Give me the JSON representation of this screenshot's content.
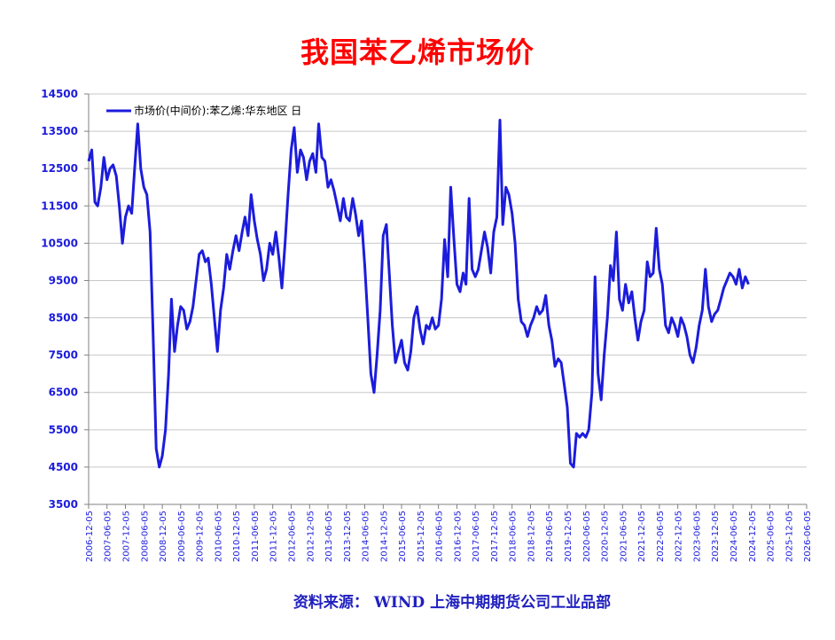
{
  "title": "我国苯乙烯市场价",
  "source": "资料来源：  WIND    上海中期期货公司工业品部",
  "colors": {
    "title": "#ff0000",
    "series": "#1c1cdc",
    "axis_text": "#1c1cdc",
    "grid": "#c8c8c8",
    "source": "#2020c0"
  },
  "chart_data": {
    "type": "line",
    "ylim": [
      3500,
      14500
    ],
    "yticks": [
      3500,
      4500,
      5500,
      6500,
      7500,
      8500,
      9500,
      10500,
      11500,
      12500,
      13500,
      14500
    ],
    "xlim": [
      "2006-12-05",
      "2026-06-05"
    ],
    "xticks": [
      "2006-12-05",
      "2007-06-05",
      "2007-12-05",
      "2008-06-05",
      "2008-12-05",
      "2009-06-05",
      "2009-12-05",
      "2010-06-05",
      "2010-12-05",
      "2011-06-05",
      "2011-12-05",
      "2012-06-05",
      "2012-12-05",
      "2013-06-05",
      "2013-12-05",
      "2014-06-05",
      "2014-12-05",
      "2015-06-05",
      "2015-12-05",
      "2016-06-05",
      "2016-12-05",
      "2017-06-05",
      "2017-12-05",
      "2018-06-05",
      "2018-12-05",
      "2019-06-05",
      "2019-12-05",
      "2020-06-05",
      "2020-12-05",
      "2021-06-05",
      "2021-12-05",
      "2022-06-05",
      "2022-12-05",
      "2023-06-05",
      "2023-12-05",
      "2024-06-05",
      "2024-12-05",
      "2025-06-05",
      "2025-12-05",
      "2026-06-05"
    ],
    "grid": true,
    "legend_position": "top-left",
    "series": [
      {
        "name": "市场价(中间价):苯乙烯:华东地区  日",
        "points": [
          [
            "2006-12-05",
            12700
          ],
          [
            "2007-01-05",
            13000
          ],
          [
            "2007-02-05",
            11600
          ],
          [
            "2007-03-05",
            11500
          ],
          [
            "2007-04-05",
            12000
          ],
          [
            "2007-05-05",
            12800
          ],
          [
            "2007-06-05",
            12200
          ],
          [
            "2007-07-05",
            12500
          ],
          [
            "2007-08-05",
            12600
          ],
          [
            "2007-09-05",
            12300
          ],
          [
            "2007-10-05",
            11500
          ],
          [
            "2007-11-05",
            10500
          ],
          [
            "2007-12-05",
            11200
          ],
          [
            "2008-01-05",
            11500
          ],
          [
            "2008-02-05",
            11300
          ],
          [
            "2008-03-05",
            12500
          ],
          [
            "2008-04-05",
            13700
          ],
          [
            "2008-05-05",
            12500
          ],
          [
            "2008-06-05",
            12000
          ],
          [
            "2008-07-05",
            11800
          ],
          [
            "2008-08-05",
            10800
          ],
          [
            "2008-09-05",
            8000
          ],
          [
            "2008-10-05",
            5000
          ],
          [
            "2008-11-05",
            4500
          ],
          [
            "2008-12-05",
            4800
          ],
          [
            "2009-01-05",
            5500
          ],
          [
            "2009-02-05",
            7000
          ],
          [
            "2009-03-05",
            9000
          ],
          [
            "2009-04-05",
            7600
          ],
          [
            "2009-05-05",
            8300
          ],
          [
            "2009-06-05",
            8800
          ],
          [
            "2009-07-05",
            8700
          ],
          [
            "2009-08-05",
            8200
          ],
          [
            "2009-09-05",
            8400
          ],
          [
            "2009-10-05",
            8800
          ],
          [
            "2009-11-05",
            9500
          ],
          [
            "2009-12-05",
            10200
          ],
          [
            "2010-01-05",
            10300
          ],
          [
            "2010-02-05",
            10000
          ],
          [
            "2010-03-05",
            10100
          ],
          [
            "2010-04-05",
            9400
          ],
          [
            "2010-05-05",
            8500
          ],
          [
            "2010-06-05",
            7600
          ],
          [
            "2010-07-05",
            8700
          ],
          [
            "2010-08-05",
            9300
          ],
          [
            "2010-09-05",
            10200
          ],
          [
            "2010-10-05",
            9800
          ],
          [
            "2010-11-05",
            10300
          ],
          [
            "2010-12-05",
            10700
          ],
          [
            "2011-01-05",
            10300
          ],
          [
            "2011-02-05",
            10800
          ],
          [
            "2011-03-05",
            11200
          ],
          [
            "2011-04-05",
            10700
          ],
          [
            "2011-05-05",
            11800
          ],
          [
            "2011-06-05",
            11100
          ],
          [
            "2011-07-05",
            10600
          ],
          [
            "2011-08-05",
            10200
          ],
          [
            "2011-09-05",
            9500
          ],
          [
            "2011-10-05",
            9800
          ],
          [
            "2011-11-05",
            10500
          ],
          [
            "2011-12-05",
            10200
          ],
          [
            "2012-01-05",
            10800
          ],
          [
            "2012-02-05",
            10100
          ],
          [
            "2012-03-05",
            9300
          ],
          [
            "2012-04-05",
            10500
          ],
          [
            "2012-05-05",
            11800
          ],
          [
            "2012-06-05",
            13000
          ],
          [
            "2012-07-05",
            13600
          ],
          [
            "2012-08-05",
            12400
          ],
          [
            "2012-09-05",
            13000
          ],
          [
            "2012-10-05",
            12800
          ],
          [
            "2012-11-05",
            12200
          ],
          [
            "2012-12-05",
            12700
          ],
          [
            "2013-01-05",
            12900
          ],
          [
            "2013-02-05",
            12400
          ],
          [
            "2013-03-05",
            13700
          ],
          [
            "2013-04-05",
            12800
          ],
          [
            "2013-05-05",
            12700
          ],
          [
            "2013-06-05",
            12000
          ],
          [
            "2013-07-05",
            12200
          ],
          [
            "2013-08-05",
            11900
          ],
          [
            "2013-09-05",
            11500
          ],
          [
            "2013-10-05",
            11100
          ],
          [
            "2013-11-05",
            11700
          ],
          [
            "2013-12-05",
            11200
          ],
          [
            "2014-01-05",
            11100
          ],
          [
            "2014-02-05",
            11700
          ],
          [
            "2014-03-05",
            11300
          ],
          [
            "2014-04-05",
            10700
          ],
          [
            "2014-05-05",
            11100
          ],
          [
            "2014-06-05",
            9900
          ],
          [
            "2014-07-05",
            8500
          ],
          [
            "2014-08-05",
            7000
          ],
          [
            "2014-09-05",
            6500
          ],
          [
            "2014-10-05",
            7500
          ],
          [
            "2014-11-05",
            8700
          ],
          [
            "2014-12-05",
            10700
          ],
          [
            "2015-01-05",
            11000
          ],
          [
            "2015-02-05",
            9600
          ],
          [
            "2015-03-05",
            8300
          ],
          [
            "2015-04-05",
            7300
          ],
          [
            "2015-05-05",
            7600
          ],
          [
            "2015-06-05",
            7900
          ],
          [
            "2015-07-05",
            7300
          ],
          [
            "2015-08-05",
            7100
          ],
          [
            "2015-09-05",
            7600
          ],
          [
            "2015-10-05",
            8500
          ],
          [
            "2015-11-05",
            8800
          ],
          [
            "2015-12-05",
            8200
          ],
          [
            "2016-01-05",
            7800
          ],
          [
            "2016-02-05",
            8300
          ],
          [
            "2016-03-05",
            8200
          ],
          [
            "2016-04-05",
            8500
          ],
          [
            "2016-05-05",
            8200
          ],
          [
            "2016-06-05",
            8300
          ],
          [
            "2016-07-05",
            9000
          ],
          [
            "2016-08-05",
            10600
          ],
          [
            "2016-09-05",
            9600
          ],
          [
            "2016-10-05",
            12000
          ],
          [
            "2016-11-05",
            10600
          ],
          [
            "2016-12-05",
            9400
          ],
          [
            "2017-01-05",
            9200
          ],
          [
            "2017-02-05",
            9700
          ],
          [
            "2017-03-05",
            9400
          ],
          [
            "2017-04-05",
            11700
          ],
          [
            "2017-05-05",
            9800
          ],
          [
            "2017-06-05",
            9600
          ],
          [
            "2017-07-05",
            9800
          ],
          [
            "2017-08-05",
            10300
          ],
          [
            "2017-09-05",
            10800
          ],
          [
            "2017-10-05",
            10400
          ],
          [
            "2017-11-05",
            9700
          ],
          [
            "2017-12-05",
            10800
          ],
          [
            "2018-01-05",
            11200
          ],
          [
            "2018-02-05",
            13800
          ],
          [
            "2018-03-05",
            11000
          ],
          [
            "2018-04-05",
            12000
          ],
          [
            "2018-05-05",
            11800
          ],
          [
            "2018-06-05",
            11300
          ],
          [
            "2018-07-05",
            10500
          ],
          [
            "2018-08-05",
            9000
          ],
          [
            "2018-09-05",
            8400
          ],
          [
            "2018-10-05",
            8300
          ],
          [
            "2018-11-05",
            8000
          ],
          [
            "2018-12-05",
            8300
          ],
          [
            "2019-01-05",
            8500
          ],
          [
            "2019-02-05",
            8800
          ],
          [
            "2019-03-05",
            8600
          ],
          [
            "2019-04-05",
            8700
          ],
          [
            "2019-05-05",
            9100
          ],
          [
            "2019-06-05",
            8300
          ],
          [
            "2019-07-05",
            7900
          ],
          [
            "2019-08-05",
            7200
          ],
          [
            "2019-09-05",
            7400
          ],
          [
            "2019-10-05",
            7300
          ],
          [
            "2019-11-05",
            6700
          ],
          [
            "2019-12-05",
            6100
          ],
          [
            "2020-01-05",
            4600
          ],
          [
            "2020-02-05",
            4500
          ],
          [
            "2020-03-05",
            5400
          ],
          [
            "2020-04-05",
            5300
          ],
          [
            "2020-05-05",
            5400
          ],
          [
            "2020-06-05",
            5300
          ],
          [
            "2020-07-05",
            5500
          ],
          [
            "2020-08-05",
            6500
          ],
          [
            "2020-09-05",
            9600
          ],
          [
            "2020-10-05",
            7000
          ],
          [
            "2020-11-05",
            6300
          ],
          [
            "2020-12-05",
            7500
          ],
          [
            "2021-01-05",
            8500
          ],
          [
            "2021-02-05",
            9900
          ],
          [
            "2021-03-05",
            9500
          ],
          [
            "2021-04-05",
            10800
          ],
          [
            "2021-05-05",
            9000
          ],
          [
            "2021-06-05",
            8700
          ],
          [
            "2021-07-05",
            9400
          ],
          [
            "2021-08-05",
            8900
          ],
          [
            "2021-09-05",
            9200
          ],
          [
            "2021-10-05",
            8500
          ],
          [
            "2021-11-05",
            7900
          ],
          [
            "2021-12-05",
            8400
          ],
          [
            "2022-01-05",
            8700
          ],
          [
            "2022-02-05",
            10000
          ],
          [
            "2022-03-05",
            9600
          ],
          [
            "2022-04-05",
            9700
          ],
          [
            "2022-05-05",
            10900
          ],
          [
            "2022-06-05",
            9800
          ],
          [
            "2022-07-05",
            9400
          ],
          [
            "2022-08-05",
            8300
          ],
          [
            "2022-09-05",
            8100
          ],
          [
            "2022-10-05",
            8500
          ],
          [
            "2022-11-05",
            8300
          ],
          [
            "2022-12-05",
            8000
          ],
          [
            "2023-01-05",
            8500
          ],
          [
            "2023-02-05",
            8300
          ],
          [
            "2023-03-05",
            8000
          ],
          [
            "2023-04-05",
            7500
          ],
          [
            "2023-05-05",
            7300
          ],
          [
            "2023-06-05",
            7700
          ],
          [
            "2023-07-05",
            8300
          ],
          [
            "2023-08-05",
            8700
          ],
          [
            "2023-09-05",
            9800
          ],
          [
            "2023-10-05",
            8800
          ],
          [
            "2023-11-05",
            8400
          ],
          [
            "2023-12-05",
            8600
          ],
          [
            "2024-01-05",
            8700
          ],
          [
            "2024-02-05",
            9000
          ],
          [
            "2024-03-05",
            9300
          ],
          [
            "2024-04-05",
            9500
          ],
          [
            "2024-05-05",
            9700
          ],
          [
            "2024-06-05",
            9600
          ],
          [
            "2024-07-05",
            9400
          ],
          [
            "2024-08-05",
            9800
          ],
          [
            "2024-09-05",
            9300
          ],
          [
            "2024-10-05",
            9600
          ],
          [
            "2024-11-05",
            9400
          ]
        ]
      }
    ]
  }
}
